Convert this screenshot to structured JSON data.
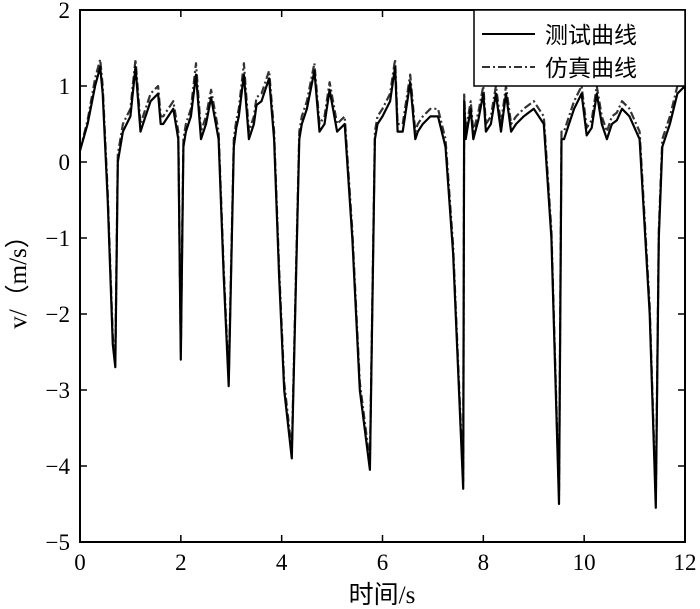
{
  "chart_data": {
    "type": "line",
    "title": "",
    "xlabel": "时间/s",
    "ylabel": "v/（m/s）",
    "xlim": [
      0,
      12
    ],
    "ylim": [
      -5,
      2
    ],
    "xticks": [
      0,
      2,
      4,
      6,
      8,
      10,
      12
    ],
    "yticks": [
      -5,
      -4,
      -3,
      -2,
      -1,
      0,
      1,
      2
    ],
    "xtick_labels": [
      "0",
      "2",
      "4",
      "6",
      "8",
      "10",
      "12"
    ],
    "ytick_labels": [
      "−5",
      "−4",
      "−3",
      "−2",
      "−1",
      "0",
      "1",
      "2"
    ],
    "grid": false,
    "legend_position": "top-right",
    "colors": {
      "axis": "#000000",
      "measured": "#000000",
      "simulated": "#333333"
    },
    "series": [
      {
        "name": "测试曲线",
        "style": "solid",
        "x": [
          0,
          0.15,
          0.3,
          0.4,
          0.45,
          0.55,
          0.65,
          0.7,
          0.75,
          0.85,
          1.0,
          1.1,
          1.2,
          1.3,
          1.4,
          1.55,
          1.6,
          1.65,
          1.75,
          1.85,
          1.95,
          2.0,
          2.05,
          2.1,
          2.2,
          2.3,
          2.4,
          2.5,
          2.6,
          2.75,
          2.85,
          2.95,
          3.05,
          3.1,
          3.15,
          3.25,
          3.35,
          3.45,
          3.5,
          3.6,
          3.75,
          3.85,
          3.95,
          4.05,
          4.2,
          4.35,
          4.4,
          4.5,
          4.65,
          4.75,
          4.85,
          4.95,
          5.1,
          5.25,
          5.4,
          5.55,
          5.75,
          5.85,
          5.9,
          6.0,
          6.15,
          6.25,
          6.3,
          6.4,
          6.55,
          6.65,
          6.7,
          6.8,
          6.95,
          7.1,
          7.25,
          7.4,
          7.6,
          7.62,
          7.65,
          7.75,
          7.8,
          7.9,
          8.0,
          8.05,
          8.15,
          8.25,
          8.35,
          8.45,
          8.55,
          8.65,
          8.8,
          9.0,
          9.2,
          9.35,
          9.5,
          9.55,
          9.6,
          9.7,
          9.8,
          9.95,
          10.05,
          10.15,
          10.25,
          10.35,
          10.45,
          10.55,
          10.65,
          10.75,
          10.9,
          11.1,
          11.3,
          11.42,
          11.48,
          11.55,
          11.7,
          11.85,
          12.0
        ],
        "y": [
          0.15,
          0.5,
          1.0,
          1.25,
          0.9,
          -0.5,
          -2.4,
          -2.7,
          0.0,
          0.4,
          0.6,
          1.25,
          0.4,
          0.6,
          0.8,
          0.9,
          0.5,
          0.5,
          0.6,
          0.7,
          0.3,
          -2.6,
          0.2,
          0.4,
          0.6,
          1.15,
          0.3,
          0.5,
          0.85,
          0.3,
          -1.5,
          -2.95,
          0.2,
          0.45,
          0.6,
          1.15,
          0.3,
          0.5,
          0.75,
          0.8,
          1.1,
          0.3,
          -1.5,
          -3.0,
          -3.9,
          0.3,
          0.5,
          0.7,
          1.2,
          0.4,
          0.5,
          0.95,
          0.4,
          0.5,
          -1.0,
          -3.0,
          -4.05,
          0.3,
          0.5,
          0.6,
          0.8,
          1.25,
          0.4,
          0.4,
          1.05,
          0.3,
          0.4,
          0.5,
          0.6,
          0.6,
          0.2,
          -1.2,
          -4.3,
          0.8,
          0.3,
          0.7,
          0.3,
          0.55,
          0.9,
          0.4,
          0.5,
          0.9,
          0.4,
          0.9,
          0.4,
          0.5,
          0.6,
          0.7,
          0.5,
          -1.0,
          -4.5,
          0.3,
          0.3,
          0.5,
          0.7,
          0.9,
          0.35,
          0.45,
          0.9,
          0.5,
          0.3,
          0.5,
          0.55,
          0.7,
          0.6,
          0.3,
          -2.0,
          -4.55,
          -1.0,
          0.2,
          0.5,
          0.9,
          1.0
        ]
      },
      {
        "name": "仿真曲线",
        "style": "dash-dot",
        "x": [
          0,
          0.15,
          0.3,
          0.4,
          0.45,
          0.55,
          0.65,
          0.7,
          0.75,
          0.85,
          1.0,
          1.1,
          1.2,
          1.3,
          1.4,
          1.55,
          1.6,
          1.65,
          1.75,
          1.85,
          1.95,
          2.0,
          2.05,
          2.1,
          2.2,
          2.3,
          2.4,
          2.5,
          2.6,
          2.75,
          2.85,
          2.95,
          3.05,
          3.1,
          3.15,
          3.25,
          3.35,
          3.45,
          3.5,
          3.6,
          3.75,
          3.85,
          3.95,
          4.05,
          4.2,
          4.35,
          4.4,
          4.5,
          4.65,
          4.75,
          4.85,
          4.95,
          5.1,
          5.25,
          5.4,
          5.55,
          5.75,
          5.85,
          5.9,
          6.0,
          6.15,
          6.25,
          6.3,
          6.4,
          6.55,
          6.65,
          6.7,
          6.8,
          6.95,
          7.1,
          7.25,
          7.4,
          7.6,
          7.62,
          7.65,
          7.75,
          7.8,
          7.9,
          8.0,
          8.05,
          8.15,
          8.25,
          8.35,
          8.45,
          8.55,
          8.65,
          8.8,
          9.0,
          9.2,
          9.35,
          9.5,
          9.55,
          9.6,
          9.7,
          9.8,
          9.95,
          10.05,
          10.15,
          10.25,
          10.35,
          10.45,
          10.55,
          10.65,
          10.75,
          10.9,
          11.1,
          11.3,
          11.42,
          11.48,
          11.55,
          11.7,
          11.85,
          12.0
        ],
        "y": [
          0.15,
          0.55,
          1.1,
          1.35,
          1.0,
          -0.4,
          -2.3,
          -2.6,
          0.1,
          0.5,
          0.7,
          1.35,
          0.5,
          0.7,
          0.9,
          1.0,
          0.6,
          0.6,
          0.7,
          0.8,
          0.4,
          -2.5,
          0.3,
          0.5,
          0.7,
          1.3,
          0.4,
          0.6,
          0.95,
          0.4,
          -1.4,
          -2.85,
          0.3,
          0.55,
          0.7,
          1.3,
          0.4,
          0.6,
          0.85,
          0.9,
          1.2,
          0.4,
          -1.4,
          -2.9,
          -3.8,
          0.4,
          0.6,
          0.8,
          1.3,
          0.5,
          0.6,
          1.05,
          0.5,
          0.6,
          -0.9,
          -2.9,
          -3.95,
          0.4,
          0.6,
          0.7,
          0.9,
          1.35,
          0.5,
          0.5,
          1.15,
          0.4,
          0.5,
          0.6,
          0.7,
          0.7,
          0.3,
          -1.1,
          -4.2,
          0.9,
          0.4,
          0.8,
          0.4,
          0.65,
          1.0,
          0.5,
          0.6,
          1.0,
          0.5,
          1.0,
          0.5,
          0.6,
          0.7,
          0.8,
          0.6,
          -0.9,
          -4.4,
          0.4,
          0.4,
          0.6,
          0.8,
          1.0,
          0.45,
          0.55,
          1.0,
          0.6,
          0.4,
          0.6,
          0.65,
          0.8,
          0.7,
          0.4,
          -1.9,
          -4.45,
          -0.9,
          0.3,
          0.6,
          1.0,
          1.1
        ]
      }
    ]
  }
}
